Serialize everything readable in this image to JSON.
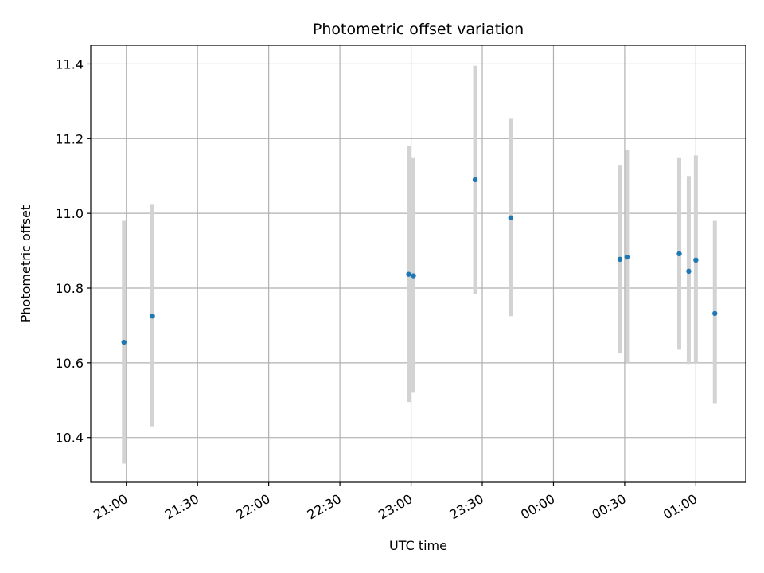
{
  "chart_data": {
    "type": "scatter",
    "title": "Photometric offset variation",
    "xlabel": "UTC time",
    "ylabel": "Photometric offset",
    "x_tick_labels": [
      "21:00",
      "21:30",
      "22:00",
      "22:30",
      "23:00",
      "23:30",
      "00:00",
      "00:30",
      "01:00"
    ],
    "x_ticks": [
      "21:00",
      "21:30",
      "22:00",
      "22:30",
      "23:00",
      "23:30",
      "24:00",
      "24:30",
      "25:00"
    ],
    "x_range": [
      "20:45",
      "25:21"
    ],
    "y_tick_labels": [
      "10.4",
      "10.6",
      "10.8",
      "11.0",
      "11.2",
      "11.4"
    ],
    "y_ticks": [
      10.4,
      10.6,
      10.8,
      11.0,
      11.2,
      11.4
    ],
    "ylim": [
      10.28,
      11.45
    ],
    "grid": true,
    "point_color": "#1f77b4",
    "errorbar_color": "#d3d3d3",
    "points": [
      {
        "x": "20:59",
        "y": 10.655,
        "y_low": 10.33,
        "y_high": 10.98
      },
      {
        "x": "21:11",
        "y": 10.725,
        "y_low": 10.43,
        "y_high": 11.025
      },
      {
        "x": "22:59",
        "y": 10.837,
        "y_low": 10.495,
        "y_high": 11.18
      },
      {
        "x": "23:01",
        "y": 10.833,
        "y_low": 10.52,
        "y_high": 11.15
      },
      {
        "x": "23:27",
        "y": 11.09,
        "y_low": 10.785,
        "y_high": 11.395
      },
      {
        "x": "23:42",
        "y": 10.988,
        "y_low": 10.725,
        "y_high": 11.255
      },
      {
        "x": "24:28",
        "y": 10.877,
        "y_low": 10.625,
        "y_high": 11.13
      },
      {
        "x": "24:31",
        "y": 10.883,
        "y_low": 10.6,
        "y_high": 11.17
      },
      {
        "x": "24:53",
        "y": 10.892,
        "y_low": 10.635,
        "y_high": 11.15
      },
      {
        "x": "24:57",
        "y": 10.845,
        "y_low": 10.595,
        "y_high": 11.1
      },
      {
        "x": "25:00",
        "y": 10.875,
        "y_low": 10.6,
        "y_high": 11.155
      },
      {
        "x": "25:08",
        "y": 10.732,
        "y_low": 10.49,
        "y_high": 10.98
      }
    ]
  }
}
